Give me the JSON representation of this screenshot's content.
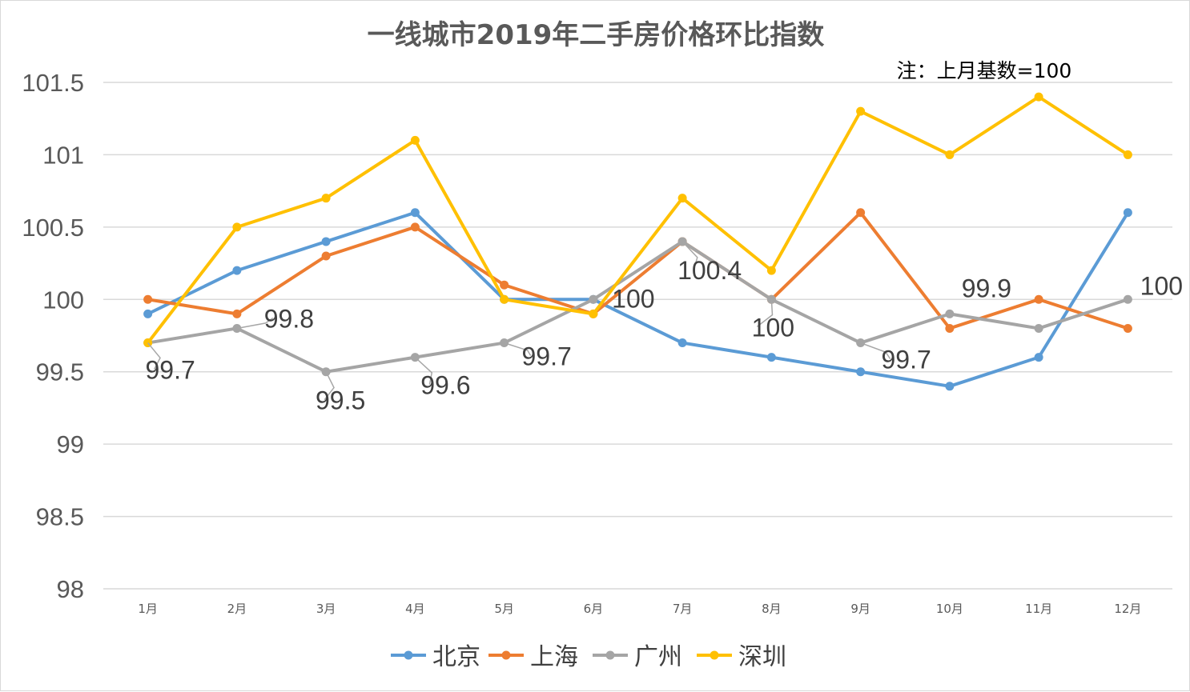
{
  "chart_data": {
    "type": "line",
    "title": "一线城市2019年二手房价格环比指数",
    "note": "注：上月基数=100",
    "categories": [
      "1月",
      "2月",
      "3月",
      "4月",
      "5月",
      "6月",
      "7月",
      "8月",
      "9月",
      "10月",
      "11月",
      "12月"
    ],
    "ylim": [
      98,
      101.5
    ],
    "yticks": [
      "98",
      "98.5",
      "99",
      "99.5",
      "100",
      "100.5",
      "101",
      "101.5"
    ],
    "grid": true,
    "legend_position": "bottom",
    "series": [
      {
        "name": "北京",
        "color": "#5B9BD5",
        "values": [
          99.9,
          100.2,
          100.4,
          100.6,
          100,
          100,
          99.7,
          99.6,
          99.5,
          99.4,
          99.6,
          100.6
        ]
      },
      {
        "name": "上海",
        "color": "#ED7D31",
        "values": [
          100,
          99.9,
          100.3,
          100.5,
          100.1,
          99.9,
          100.4,
          100,
          100.6,
          99.8,
          100,
          99.8
        ]
      },
      {
        "name": "广州",
        "color": "#A5A5A5",
        "values": [
          99.7,
          99.8,
          99.5,
          99.6,
          99.7,
          100,
          100.4,
          100,
          99.7,
          99.9,
          99.8,
          100
        ]
      },
      {
        "name": "深圳",
        "color": "#FFC000",
        "values": [
          99.7,
          100.5,
          100.7,
          101.1,
          100,
          99.9,
          100.7,
          100.2,
          101.3,
          101,
          101.4,
          101
        ]
      }
    ],
    "data_labels": {
      "series": "广州",
      "texts": [
        "99.7",
        "99.8",
        "99.5",
        "99.6",
        "99.7",
        "100",
        "100.4",
        "100",
        "99.7",
        "99.9",
        "",
        "100"
      ]
    }
  }
}
